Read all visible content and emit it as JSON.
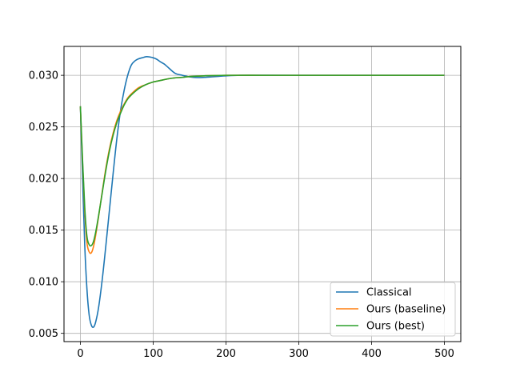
{
  "chart_data": {
    "type": "line",
    "title": "",
    "xlabel": "",
    "ylabel": "",
    "xlim": [
      -22.5,
      522.5
    ],
    "ylim": [
      0.0042,
      0.0328
    ],
    "xticks": [
      0,
      100,
      200,
      300,
      400,
      500
    ],
    "xtick_labels": [
      "0",
      "100",
      "200",
      "300",
      "400",
      "500"
    ],
    "yticks": [
      0.005,
      0.01,
      0.015,
      0.02,
      0.025,
      0.03
    ],
    "ytick_labels": [
      "0.005",
      "0.010",
      "0.015",
      "0.020",
      "0.025",
      "0.030"
    ],
    "grid": true,
    "legend_position": "lower-right",
    "series": [
      {
        "name": "Classical",
        "color": "#1f77b4",
        "x": [
          0,
          3,
          6,
          9,
          12,
          15,
          18,
          21,
          25,
          30,
          35,
          40,
          45,
          50,
          55,
          60,
          65,
          70,
          75,
          80,
          85,
          90,
          95,
          100,
          105,
          110,
          115,
          120,
          130,
          140,
          150,
          160,
          170,
          180,
          190,
          200,
          220,
          250,
          300,
          400,
          500
        ],
        "y": [
          0.027,
          0.02,
          0.0135,
          0.0093,
          0.0068,
          0.0058,
          0.0056,
          0.0061,
          0.0075,
          0.0102,
          0.0135,
          0.017,
          0.0205,
          0.0238,
          0.0265,
          0.0285,
          0.03,
          0.031,
          0.0314,
          0.0316,
          0.0317,
          0.0318,
          0.03178,
          0.0317,
          0.03155,
          0.0313,
          0.0311,
          0.0308,
          0.0302,
          0.03,
          0.02985,
          0.02978,
          0.0298,
          0.02985,
          0.0299,
          0.02995,
          0.03,
          0.03001,
          0.03,
          0.03,
          0.03
        ]
      },
      {
        "name": "Ours (baseline)",
        "color": "#ff7f0e",
        "x": [
          0,
          3,
          6,
          9,
          12,
          15,
          18,
          21,
          25,
          30,
          35,
          40,
          45,
          50,
          55,
          60,
          65,
          70,
          80,
          90,
          100,
          110,
          120,
          130,
          140,
          150,
          170,
          200,
          250,
          300,
          400,
          500
        ],
        "y": [
          0.027,
          0.0215,
          0.0168,
          0.0138,
          0.0129,
          0.0128,
          0.0134,
          0.0145,
          0.0163,
          0.0187,
          0.021,
          0.0229,
          0.0244,
          0.0256,
          0.0265,
          0.0272,
          0.0278,
          0.0282,
          0.0288,
          0.0291,
          0.02935,
          0.0295,
          0.02965,
          0.02975,
          0.0298,
          0.02988,
          0.02995,
          0.03,
          0.03,
          0.03,
          0.03,
          0.03
        ]
      },
      {
        "name": "Ours (best)",
        "color": "#2ca02c",
        "x": [
          0,
          3,
          6,
          9,
          12,
          15,
          18,
          21,
          25,
          30,
          35,
          40,
          45,
          50,
          55,
          60,
          65,
          70,
          80,
          90,
          100,
          110,
          120,
          130,
          140,
          150,
          170,
          200,
          250,
          300,
          400,
          500
        ],
        "y": [
          0.027,
          0.0218,
          0.0172,
          0.0144,
          0.0136,
          0.0135,
          0.0139,
          0.0148,
          0.0164,
          0.0186,
          0.0208,
          0.0227,
          0.0242,
          0.0254,
          0.0263,
          0.0271,
          0.0277,
          0.0281,
          0.0287,
          0.0291,
          0.02935,
          0.0295,
          0.02965,
          0.02975,
          0.0298,
          0.02988,
          0.02995,
          0.03,
          0.03,
          0.03,
          0.03,
          0.03
        ]
      }
    ]
  }
}
